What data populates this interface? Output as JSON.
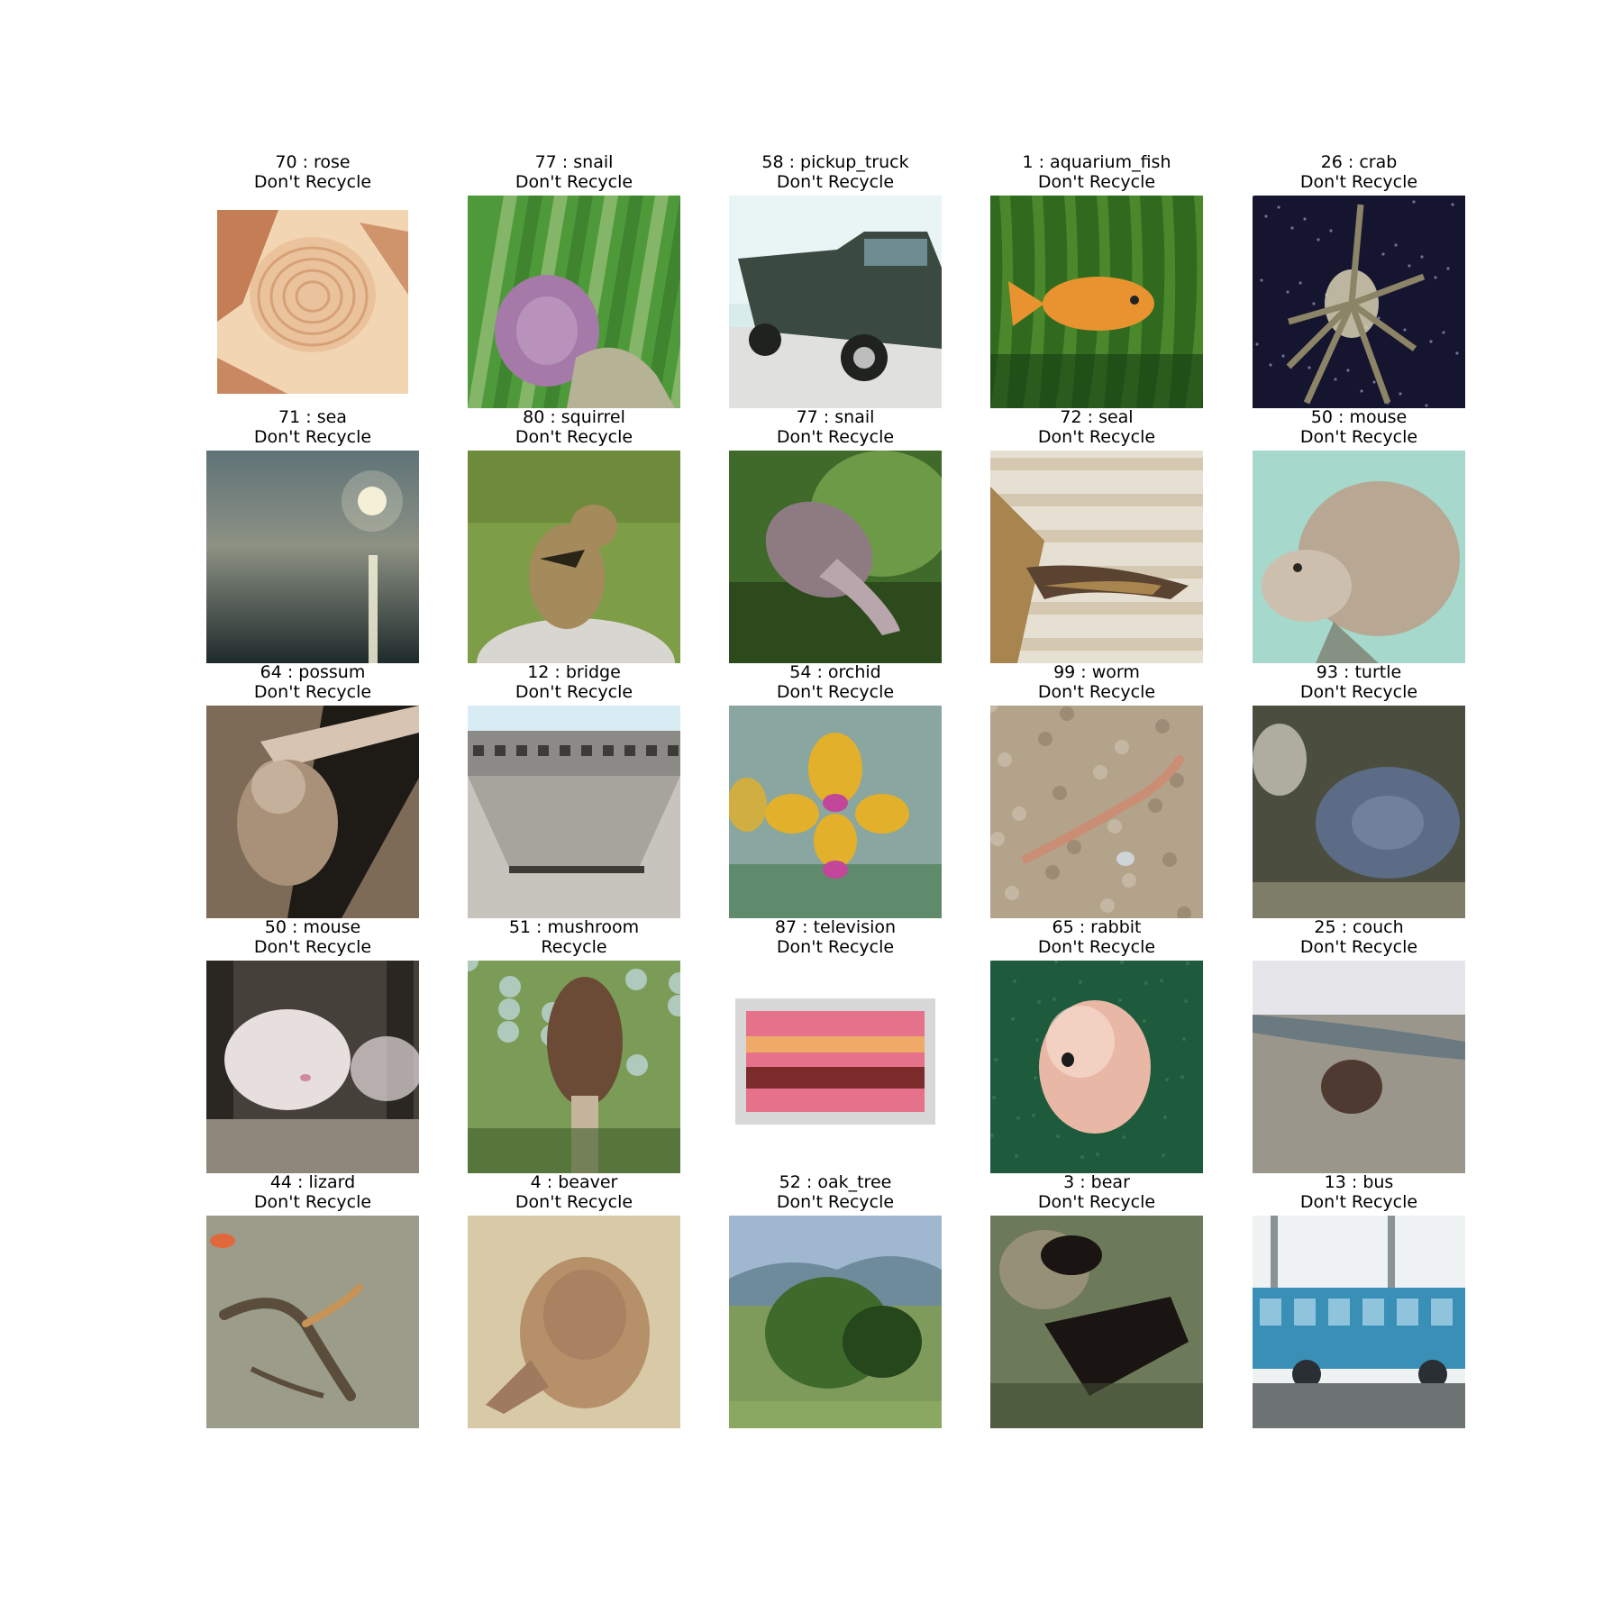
{
  "figure": {
    "tiles": [
      {
        "label": "70 : rose",
        "status": "Don't Recycle",
        "subject": "rose-photo",
        "colors": [
          "#f2d6b4",
          "#e3b58a",
          "#b9673e",
          "#ffffff"
        ]
      },
      {
        "label": "77 : snail",
        "status": "Don't Recycle",
        "subject": "snail-photo",
        "colors": [
          "#4e9a3a",
          "#a57aa8",
          "#2f6b22",
          "#c9d7a2"
        ]
      },
      {
        "label": "58 : pickup_truck",
        "status": "Don't Recycle",
        "subject": "pickup-truck-photo",
        "colors": [
          "#d8ecec",
          "#3b4a40",
          "#e0e0de",
          "#7c7a72"
        ]
      },
      {
        "label": "1 : aquarium_fish",
        "status": "Don't Recycle",
        "subject": "aquarium-fish-photo",
        "colors": [
          "#2f6a1f",
          "#e8932f",
          "#5d9c33",
          "#173e14"
        ]
      },
      {
        "label": "26 : crab",
        "status": "Don't Recycle",
        "subject": "crab-photo",
        "colors": [
          "#151530",
          "#d9d2b5",
          "#2a2a4a",
          "#8c8466"
        ]
      },
      {
        "label": "71 : sea",
        "status": "Don't Recycle",
        "subject": "sea-photo",
        "colors": [
          "#5f7378",
          "#f5f1d8",
          "#1f2a2b",
          "#8c9183"
        ]
      },
      {
        "label": "80 : squirrel",
        "status": "Don't Recycle",
        "subject": "squirrel-photo",
        "colors": [
          "#7d9d47",
          "#a58a5c",
          "#d8d6d0",
          "#4f6a25"
        ]
      },
      {
        "label": "77 : snail",
        "status": "Don't Recycle",
        "subject": "snail-photo",
        "colors": [
          "#3f6a2a",
          "#8e7b82",
          "#2c4a1c",
          "#6d9a46"
        ]
      },
      {
        "label": "72 : seal",
        "status": "Don't Recycle",
        "subject": "seal-photo",
        "colors": [
          "#e6e0d2",
          "#a8844e",
          "#c9b89a",
          "#5a4330"
        ]
      },
      {
        "label": "50 : mouse",
        "status": "Don't Recycle",
        "subject": "mouse-photo",
        "colors": [
          "#a6d8cc",
          "#b7a793",
          "#cdbfae",
          "#6f6252"
        ]
      },
      {
        "label": "64 : possum",
        "status": "Don't Recycle",
        "subject": "possum-photo",
        "colors": [
          "#7d6b58",
          "#d8c4b2",
          "#1e1a15",
          "#a89178"
        ]
      },
      {
        "label": "12 : bridge",
        "status": "Don't Recycle",
        "subject": "bridge-photo",
        "colors": [
          "#d8ecf4",
          "#8b8a86",
          "#c6c4bc",
          "#3c3b37"
        ]
      },
      {
        "label": "54 : orchid",
        "status": "Don't Recycle",
        "subject": "orchid-photo",
        "colors": [
          "#8aa6a0",
          "#e2b02a",
          "#c2469a",
          "#4e7f55"
        ]
      },
      {
        "label": "99 : worm",
        "status": "Don't Recycle",
        "subject": "worm-photo",
        "colors": [
          "#b3a38b",
          "#c98e74",
          "#857660",
          "#d6ccbc"
        ]
      },
      {
        "label": "93 : turtle",
        "status": "Don't Recycle",
        "subject": "turtle-photo",
        "colors": [
          "#4b4e3e",
          "#5c6c86",
          "#8a8a73",
          "#d9d6c9"
        ]
      },
      {
        "label": "50 : mouse",
        "status": "Don't Recycle",
        "subject": "mouse-photo",
        "colors": [
          "#46403a",
          "#e7dede",
          "#2a2622",
          "#8f877c"
        ]
      },
      {
        "label": "51 : mushroom",
        "status": "Recycle",
        "subject": "mushroom-photo",
        "colors": [
          "#7b9c56",
          "#6b4a36",
          "#c6b39c",
          "#3d5d2c"
        ]
      },
      {
        "label": "87 : television",
        "status": "Don't Recycle",
        "subject": "television-photo",
        "colors": [
          "#ffffff",
          "#d7d7d7",
          "#e6718a",
          "#7c2b2b"
        ]
      },
      {
        "label": "65 : rabbit",
        "status": "Don't Recycle",
        "subject": "rabbit-photo",
        "colors": [
          "#1e5a3c",
          "#e8b7a5",
          "#0f3a24",
          "#f6dcd0"
        ]
      },
      {
        "label": "25 : couch",
        "status": "Don't Recycle",
        "subject": "couch-photo",
        "colors": [
          "#e6e6ea",
          "#6f6d66",
          "#4f3a32",
          "#9a968c"
        ]
      },
      {
        "label": "44 : lizard",
        "status": "Don't Recycle",
        "subject": "lizard-photo",
        "colors": [
          "#9c9c8a",
          "#5b4d3c",
          "#c79356",
          "#e0683a"
        ]
      },
      {
        "label": "4 : beaver",
        "status": "Don't Recycle",
        "subject": "beaver-photo",
        "colors": [
          "#d8c9a7",
          "#9f7a5e",
          "#b69068",
          "#efe3c8"
        ]
      },
      {
        "label": "52 : oak_tree",
        "status": "Don't Recycle",
        "subject": "oak-tree-photo",
        "colors": [
          "#9fb7cf",
          "#3e6a2c",
          "#26461c",
          "#7f9b5b"
        ]
      },
      {
        "label": "3 : bear",
        "status": "Don't Recycle",
        "subject": "bear-photo",
        "colors": [
          "#6c7a5a",
          "#1a1512",
          "#a89a82",
          "#3d4a30"
        ]
      },
      {
        "label": "13 : bus",
        "status": "Don't Recycle",
        "subject": "bus-photo",
        "colors": [
          "#eef2f2",
          "#3a8fb7",
          "#6d7273",
          "#2a2f33"
        ]
      }
    ]
  }
}
